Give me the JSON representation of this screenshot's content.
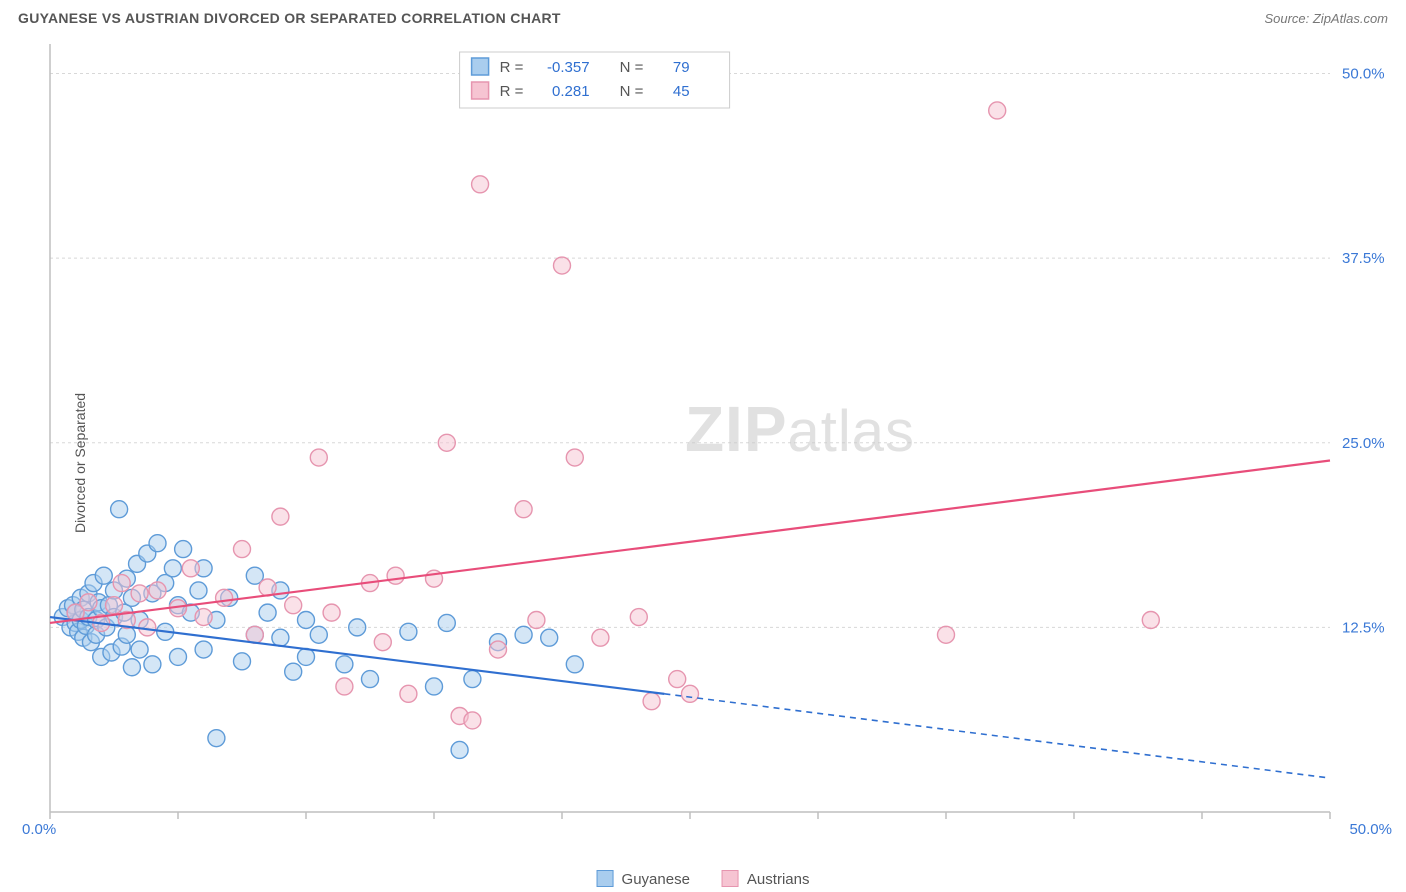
{
  "header": {
    "title": "GUYANESE VS AUSTRIAN DIVORCED OR SEPARATED CORRELATION CHART",
    "source": "Source: ZipAtlas.com"
  },
  "ylabel": "Divorced or Separated",
  "watermark": {
    "part1": "ZIP",
    "part2": "atlas"
  },
  "chart": {
    "type": "scatter",
    "xlim": [
      0,
      50
    ],
    "ylim": [
      0,
      52
    ],
    "x_tick_step": 5,
    "y_ticks": [
      12.5,
      25.0,
      37.5,
      50.0
    ],
    "y_tick_labels": [
      "12.5%",
      "25.0%",
      "37.5%",
      "50.0%"
    ],
    "x_origin_label": "0.0%",
    "x_max_label": "50.0%",
    "background_color": "#ffffff",
    "grid_color": "#d8d8d8",
    "axis_color": "#bfbfbf",
    "marker_radius": 8.5,
    "marker_opacity": 0.5,
    "series": [
      {
        "name": "Guyanese",
        "fill": "#a9cdee",
        "stroke": "#5e9bd8",
        "R": "-0.357",
        "N": "79",
        "trend": {
          "x1": 0,
          "y1": 13.2,
          "x2": 24,
          "y2": 8.0,
          "dash_to_x": 50,
          "dash_to_y": 2.3
        },
        "points": [
          [
            0.5,
            13.2
          ],
          [
            0.7,
            13.8
          ],
          [
            0.8,
            12.5
          ],
          [
            0.9,
            14.0
          ],
          [
            1.0,
            12.8
          ],
          [
            1.0,
            13.5
          ],
          [
            1.1,
            12.2
          ],
          [
            1.2,
            14.5
          ],
          [
            1.2,
            13.0
          ],
          [
            1.3,
            11.8
          ],
          [
            1.3,
            13.7
          ],
          [
            1.4,
            12.6
          ],
          [
            1.5,
            14.8
          ],
          [
            1.5,
            13.2
          ],
          [
            1.6,
            11.5
          ],
          [
            1.7,
            15.5
          ],
          [
            1.8,
            13.0
          ],
          [
            1.8,
            12.0
          ],
          [
            1.9,
            14.2
          ],
          [
            2.0,
            10.5
          ],
          [
            2.0,
            13.8
          ],
          [
            2.1,
            16.0
          ],
          [
            2.2,
            12.5
          ],
          [
            2.3,
            14.0
          ],
          [
            2.4,
            10.8
          ],
          [
            2.5,
            13.2
          ],
          [
            2.5,
            15.0
          ],
          [
            2.7,
            20.5
          ],
          [
            2.8,
            11.2
          ],
          [
            2.9,
            13.5
          ],
          [
            3.0,
            15.8
          ],
          [
            3.0,
            12.0
          ],
          [
            3.2,
            9.8
          ],
          [
            3.2,
            14.5
          ],
          [
            3.4,
            16.8
          ],
          [
            3.5,
            11.0
          ],
          [
            3.5,
            13.0
          ],
          [
            3.8,
            17.5
          ],
          [
            4.0,
            10.0
          ],
          [
            4.0,
            14.8
          ],
          [
            4.2,
            18.2
          ],
          [
            4.5,
            15.5
          ],
          [
            4.5,
            12.2
          ],
          [
            4.8,
            16.5
          ],
          [
            5.0,
            10.5
          ],
          [
            5.0,
            14.0
          ],
          [
            5.2,
            17.8
          ],
          [
            5.5,
            13.5
          ],
          [
            5.8,
            15.0
          ],
          [
            6.0,
            11.0
          ],
          [
            6.0,
            16.5
          ],
          [
            6.5,
            5.0
          ],
          [
            6.5,
            13.0
          ],
          [
            7.0,
            14.5
          ],
          [
            7.5,
            10.2
          ],
          [
            8.0,
            16.0
          ],
          [
            8.0,
            12.0
          ],
          [
            8.5,
            13.5
          ],
          [
            9.0,
            11.8
          ],
          [
            9.0,
            15.0
          ],
          [
            9.5,
            9.5
          ],
          [
            10.0,
            10.5
          ],
          [
            10.0,
            13.0
          ],
          [
            10.5,
            12.0
          ],
          [
            11.5,
            10.0
          ],
          [
            12.0,
            12.5
          ],
          [
            12.5,
            9.0
          ],
          [
            14.0,
            12.2
          ],
          [
            15.0,
            8.5
          ],
          [
            15.5,
            12.8
          ],
          [
            16.0,
            4.2
          ],
          [
            16.5,
            9.0
          ],
          [
            17.5,
            11.5
          ],
          [
            18.5,
            12.0
          ],
          [
            19.5,
            11.8
          ],
          [
            20.5,
            10.0
          ]
        ]
      },
      {
        "name": "Austrians",
        "fill": "#f6c4d2",
        "stroke": "#e695af",
        "R": "0.281",
        "N": "45",
        "trend": {
          "x1": 0,
          "y1": 12.8,
          "x2": 50,
          "y2": 23.8
        },
        "points": [
          [
            1.0,
            13.5
          ],
          [
            1.5,
            14.2
          ],
          [
            2.0,
            12.8
          ],
          [
            2.5,
            14.0
          ],
          [
            2.8,
            15.5
          ],
          [
            3.0,
            13.0
          ],
          [
            3.5,
            14.8
          ],
          [
            3.8,
            12.5
          ],
          [
            4.2,
            15.0
          ],
          [
            5.0,
            13.8
          ],
          [
            5.5,
            16.5
          ],
          [
            6.0,
            13.2
          ],
          [
            6.8,
            14.5
          ],
          [
            7.5,
            17.8
          ],
          [
            8.0,
            12.0
          ],
          [
            8.5,
            15.2
          ],
          [
            9.0,
            20.0
          ],
          [
            9.5,
            14.0
          ],
          [
            10.5,
            24.0
          ],
          [
            11.0,
            13.5
          ],
          [
            11.5,
            8.5
          ],
          [
            12.5,
            15.5
          ],
          [
            13.0,
            11.5
          ],
          [
            13.5,
            16.0
          ],
          [
            14.0,
            8.0
          ],
          [
            15.0,
            15.8
          ],
          [
            15.5,
            25.0
          ],
          [
            16.0,
            6.5
          ],
          [
            16.5,
            6.2
          ],
          [
            16.8,
            42.5
          ],
          [
            17.5,
            11.0
          ],
          [
            18.5,
            20.5
          ],
          [
            19.0,
            13.0
          ],
          [
            20.0,
            37.0
          ],
          [
            20.5,
            24.0
          ],
          [
            21.5,
            11.8
          ],
          [
            23.0,
            13.2
          ],
          [
            23.5,
            7.5
          ],
          [
            24.5,
            9.0
          ],
          [
            25.0,
            8.0
          ],
          [
            35.0,
            12.0
          ],
          [
            37.0,
            47.5
          ],
          [
            43.0,
            13.0
          ]
        ]
      }
    ]
  },
  "legend_top": {
    "rows": [
      {
        "series_idx": 0,
        "r_label": "R =",
        "n_label": "N ="
      },
      {
        "series_idx": 1,
        "r_label": "R =",
        "n_label": "N ="
      }
    ]
  },
  "legend_bottom": [
    {
      "series_idx": 0
    },
    {
      "series_idx": 1
    }
  ]
}
